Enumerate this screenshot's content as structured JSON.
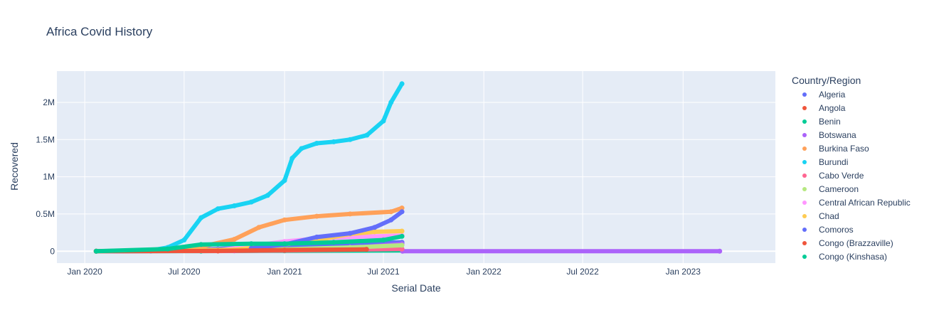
{
  "chart_data": {
    "type": "scatter",
    "title": "Africa Covid History",
    "xlabel": "Serial Date",
    "ylabel": "Recovered",
    "x_ticks": [
      "Jan 2020",
      "Jul 2020",
      "Jan 2021",
      "Jul 2021",
      "Jan 2022",
      "Jul 2022",
      "Jan 2023"
    ],
    "x_tick_dates": [
      "2020-01-01",
      "2020-07-01",
      "2021-01-01",
      "2021-07-01",
      "2022-01-01",
      "2022-07-01",
      "2023-01-01"
    ],
    "xlim": [
      "2019-11-11",
      "2023-06-19"
    ],
    "y_ticks": [
      "0",
      "0.5M",
      "1M",
      "1.5M",
      "2M"
    ],
    "y_tick_values": [
      0,
      500000,
      1000000,
      1500000,
      2000000
    ],
    "ylim": [
      -160000,
      2420000
    ],
    "grid": true,
    "legend_title": "Country/Region",
    "legend_position": "right",
    "series": [
      {
        "name": "Algeria",
        "color": "#636efa",
        "points": [
          [
            "2020-01-22",
            0
          ],
          [
            "2020-05-01",
            2000
          ],
          [
            "2020-09-01",
            30000
          ],
          [
            "2021-01-01",
            80000
          ],
          [
            "2021-05-01",
            100000
          ],
          [
            "2021-08-04",
            120000
          ]
        ]
      },
      {
        "name": "Angola",
        "color": "#EF553B",
        "points": [
          [
            "2020-01-22",
            0
          ],
          [
            "2020-09-01",
            3000
          ],
          [
            "2021-01-01",
            10000
          ],
          [
            "2021-03-01",
            15000
          ],
          [
            "2021-05-31",
            20000
          ]
        ]
      },
      {
        "name": "Benin",
        "color": "#00cc96",
        "points": [
          [
            "2020-01-22",
            0
          ],
          [
            "2020-08-01",
            1000
          ],
          [
            "2021-01-01",
            5000
          ],
          [
            "2021-08-04",
            10000
          ]
        ]
      },
      {
        "name": "Botswana",
        "color": "#ab63fa",
        "points": [
          [
            "2020-01-22",
            0
          ],
          [
            "2020-10-01",
            5000
          ],
          [
            "2021-01-01",
            20000
          ],
          [
            "2021-05-01",
            40000
          ],
          [
            "2021-08-04",
            100000
          ],
          [
            "2021-08-05",
            0
          ],
          [
            "2023-03-09",
            0
          ]
        ]
      },
      {
        "name": "Burkina Faso",
        "color": "#FFA15A",
        "points": [
          [
            "2020-01-22",
            0
          ],
          [
            "2020-06-01",
            15000
          ],
          [
            "2020-08-01",
            60000
          ],
          [
            "2020-10-01",
            160000
          ],
          [
            "2020-11-15",
            320000
          ],
          [
            "2021-01-01",
            420000
          ],
          [
            "2021-03-01",
            470000
          ],
          [
            "2021-05-01",
            500000
          ],
          [
            "2021-07-15",
            530000
          ],
          [
            "2021-08-04",
            580000
          ]
        ]
      },
      {
        "name": "Burundi",
        "color": "#19d3f3",
        "points": [
          [
            "2020-01-22",
            0
          ],
          [
            "2020-05-01",
            10000
          ],
          [
            "2020-06-01",
            50000
          ],
          [
            "2020-07-01",
            150000
          ],
          [
            "2020-08-01",
            450000
          ],
          [
            "2020-09-01",
            570000
          ],
          [
            "2020-10-01",
            610000
          ],
          [
            "2020-11-01",
            660000
          ],
          [
            "2020-12-01",
            750000
          ],
          [
            "2021-01-01",
            950000
          ],
          [
            "2021-01-15",
            1250000
          ],
          [
            "2021-02-01",
            1380000
          ],
          [
            "2021-03-01",
            1450000
          ],
          [
            "2021-04-01",
            1470000
          ],
          [
            "2021-05-01",
            1500000
          ],
          [
            "2021-06-01",
            1560000
          ],
          [
            "2021-07-01",
            1750000
          ],
          [
            "2021-07-15",
            2000000
          ],
          [
            "2021-08-04",
            2250000
          ]
        ]
      },
      {
        "name": "Cabo Verde",
        "color": "#FF6692",
        "points": [
          [
            "2020-01-22",
            0
          ],
          [
            "2020-09-01",
            3000
          ],
          [
            "2021-01-01",
            10000
          ],
          [
            "2021-08-04",
            30000
          ]
        ]
      },
      {
        "name": "Cameroon",
        "color": "#B6E880",
        "points": [
          [
            "2020-01-22",
            0
          ],
          [
            "2020-09-01",
            15000
          ],
          [
            "2021-01-01",
            25000
          ],
          [
            "2021-05-01",
            50000
          ],
          [
            "2021-08-04",
            80000
          ]
        ]
      },
      {
        "name": "Central African Republic",
        "color": "#FF97FF",
        "points": [
          [
            "2020-01-22",
            0
          ],
          [
            "2020-09-01",
            10000
          ],
          [
            "2021-01-01",
            130000
          ],
          [
            "2021-03-01",
            170000
          ],
          [
            "2021-05-01",
            190000
          ],
          [
            "2021-08-04",
            210000
          ]
        ]
      },
      {
        "name": "Chad",
        "color": "#FECB52",
        "points": [
          [
            "2020-01-22",
            0
          ],
          [
            "2020-10-01",
            20000
          ],
          [
            "2021-01-01",
            90000
          ],
          [
            "2021-03-01",
            150000
          ],
          [
            "2021-05-01",
            230000
          ],
          [
            "2021-06-15",
            260000
          ],
          [
            "2021-08-04",
            270000
          ]
        ]
      },
      {
        "name": "Comoros",
        "color": "#636efa",
        "points": [
          [
            "2020-11-01",
            40000
          ],
          [
            "2021-01-01",
            90000
          ],
          [
            "2021-03-01",
            190000
          ],
          [
            "2021-05-01",
            240000
          ],
          [
            "2021-06-15",
            320000
          ],
          [
            "2021-07-15",
            420000
          ],
          [
            "2021-08-04",
            530000
          ]
        ]
      },
      {
        "name": "Congo (Brazzaville)",
        "color": "#EF553B",
        "points": [
          [
            "2020-01-22",
            0
          ],
          [
            "2020-09-01",
            5000
          ],
          [
            "2021-01-01",
            15000
          ],
          [
            "2021-05-31",
            25000
          ]
        ]
      },
      {
        "name": "Congo (Kinshasa)",
        "color": "#00cc96",
        "points": [
          [
            "2020-01-22",
            0
          ],
          [
            "2020-06-01",
            30000
          ],
          [
            "2020-08-01",
            90000
          ],
          [
            "2020-11-01",
            100000
          ],
          [
            "2021-01-01",
            100000
          ],
          [
            "2021-04-01",
            120000
          ],
          [
            "2021-07-01",
            150000
          ],
          [
            "2021-08-04",
            200000
          ]
        ]
      }
    ]
  }
}
